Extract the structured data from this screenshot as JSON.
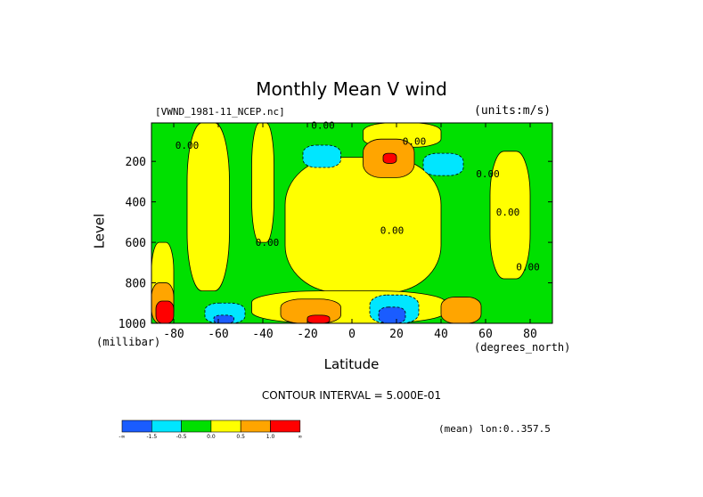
{
  "chart_data": {
    "type": "heatmap",
    "title": "Monthly Mean V wind",
    "dataset_label": "[VWND_1981-11_NCEP.nc]",
    "units_label": "(units:m/s)",
    "xlabel": "Latitude",
    "x_units_label": "(degrees_north)",
    "ylabel": "Level",
    "y_units_label": "(millibar)",
    "xlim": [
      -90,
      90
    ],
    "ylim": [
      1000,
      10
    ],
    "x_ticks": [
      {
        "value": -80,
        "label": "-80"
      },
      {
        "value": -60,
        "label": "-60"
      },
      {
        "value": -40,
        "label": "-40"
      },
      {
        "value": -20,
        "label": "-20"
      },
      {
        "value": 0,
        "label": "0"
      },
      {
        "value": 20,
        "label": "20"
      },
      {
        "value": 40,
        "label": "40"
      },
      {
        "value": 60,
        "label": "60"
      },
      {
        "value": 80,
        "label": "80"
      }
    ],
    "y_ticks": [
      {
        "value": 200,
        "label": "200"
      },
      {
        "value": 400,
        "label": "400"
      },
      {
        "value": 600,
        "label": "600"
      },
      {
        "value": 800,
        "label": "800"
      },
      {
        "value": 1000,
        "label": "1000"
      }
    ],
    "contour_interval_text": "CONTOUR INTERVAL = 5.000E-01",
    "averaging_text": "(mean) lon:0..357.5",
    "colorbar": {
      "colors": [
        "#1a5cff",
        "#00e6ff",
        "#00e000",
        "#ffff00",
        "#ffa500",
        "#ff0000"
      ],
      "labels": [
        "-∞",
        "-1.5",
        "-0.5",
        "0.0",
        "0.5",
        "1.0",
        "∞"
      ]
    },
    "contour_labels": [
      {
        "text": "0.00",
        "lat": -13,
        "level": 20
      },
      {
        "text": "0.00",
        "lat": 28,
        "level": 100
      },
      {
        "text": "0.00",
        "lat": -74,
        "level": 120
      },
      {
        "text": "0.00",
        "lat": 61,
        "level": 260
      },
      {
        "text": "0.00",
        "lat": 70,
        "level": 450
      },
      {
        "text": "0.00",
        "lat": 18,
        "level": 540
      },
      {
        "text": "0.00",
        "lat": -38,
        "level": 600
      },
      {
        "text": "0.00",
        "lat": 79,
        "level": 720
      }
    ],
    "regions": [
      {
        "color": "#00e000",
        "cells": "background"
      },
      {
        "color": "#ffff00",
        "lat": [
          -90,
          -80
        ],
        "level": [
          600,
          1000
        ]
      },
      {
        "color": "#ffff00",
        "lat": [
          -74,
          -55
        ],
        "level": [
          10,
          840
        ]
      },
      {
        "color": "#ffff00",
        "lat": [
          -45,
          -35
        ],
        "level": [
          10,
          600
        ]
      },
      {
        "color": "#ffff00",
        "lat": [
          -30,
          40
        ],
        "level": [
          180,
          850
        ]
      },
      {
        "color": "#ffff00",
        "lat": [
          -45,
          42
        ],
        "level": [
          840,
          1000
        ]
      },
      {
        "color": "#ffff00",
        "lat": [
          5,
          40
        ],
        "level": [
          10,
          130
        ]
      },
      {
        "color": "#ffff00",
        "lat": [
          62,
          80
        ],
        "level": [
          150,
          780
        ]
      },
      {
        "color": "#00e6ff",
        "lat": [
          -22,
          -5
        ],
        "level": [
          120,
          230
        ]
      },
      {
        "color": "#00e6ff",
        "lat": [
          32,
          50
        ],
        "level": [
          160,
          270
        ]
      },
      {
        "color": "#ffa500",
        "lat": [
          5,
          28
        ],
        "level": [
          90,
          280
        ]
      },
      {
        "color": "#ff0000",
        "lat": [
          14,
          20
        ],
        "level": [
          160,
          210
        ]
      },
      {
        "color": "#ffa500",
        "lat": [
          -32,
          -5
        ],
        "level": [
          880,
          1000
        ]
      },
      {
        "color": "#ff0000",
        "lat": [
          -20,
          -10
        ],
        "level": [
          960,
          1000
        ]
      },
      {
        "color": "#00e6ff",
        "lat": [
          8,
          30
        ],
        "level": [
          860,
          1000
        ]
      },
      {
        "color": "#1a5cff",
        "lat": [
          12,
          24
        ],
        "level": [
          920,
          1000
        ]
      },
      {
        "color": "#ffa500",
        "lat": [
          40,
          58
        ],
        "level": [
          870,
          1000
        ]
      },
      {
        "color": "#00e6ff",
        "lat": [
          -66,
          -48
        ],
        "level": [
          900,
          1000
        ]
      },
      {
        "color": "#1a5cff",
        "lat": [
          -62,
          -53
        ],
        "level": [
          960,
          1000
        ]
      },
      {
        "color": "#ffa500",
        "lat": [
          -90,
          -80
        ],
        "level": [
          800,
          1000
        ]
      },
      {
        "color": "#ff0000",
        "lat": [
          -88,
          -80
        ],
        "level": [
          890,
          1000
        ]
      }
    ]
  }
}
